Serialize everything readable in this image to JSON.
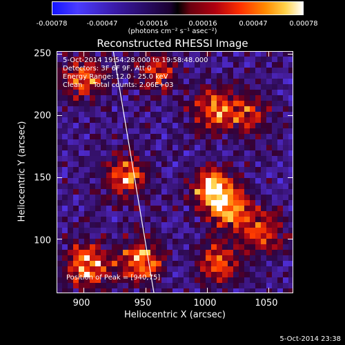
{
  "chart_data": {
    "type": "heatmap",
    "title": "Reconstructed RHESSI Image",
    "xlabel": "Heliocentric X (arcsec)",
    "ylabel": "Heliocentric Y (arcsec)",
    "xlim": [
      878,
      1070
    ],
    "ylim": [
      56,
      252
    ],
    "x_ticks": [
      "900",
      "950",
      "1000",
      "1050"
    ],
    "x_tick_values": [
      900,
      950,
      1000,
      1050
    ],
    "y_ticks": [
      "250",
      "200",
      "150",
      "100"
    ],
    "y_tick_values": [
      250,
      200,
      150,
      100
    ],
    "colorbar": {
      "min": -0.00078,
      "max": 0.00078,
      "ticks": [
        "-0.00078",
        "-0.00047",
        "-0.00016",
        "0.00016",
        "0.00047",
        "0.00078"
      ],
      "unit": "(photons cm⁻² s⁻¹ asec⁻²)"
    },
    "annotations": [
      "5-Oct-2014 19:54:28.000 to 19:58:48.000",
      "Detectors: 3F 6F 9F, Att 0",
      "Energy Range: 12.0 - 25.0 keV",
      "Clean     Total counts: 2.06E+03",
      "Position of Peak = [940,75]"
    ],
    "limb_line": {
      "x": [
        924,
        957
      ],
      "y": [
        252,
        56
      ]
    },
    "hot_spots": [
      {
        "x": 903,
        "y": 78,
        "strength": 0.9
      },
      {
        "x": 945,
        "y": 82,
        "strength": 0.85
      },
      {
        "x": 935,
        "y": 150,
        "strength": 0.75
      },
      {
        "x": 1005,
        "y": 140,
        "strength": 0.9
      },
      {
        "x": 1020,
        "y": 125,
        "strength": 0.7
      },
      {
        "x": 1045,
        "y": 105,
        "strength": 0.65
      },
      {
        "x": 900,
        "y": 230,
        "strength": 0.7
      },
      {
        "x": 1005,
        "y": 205,
        "strength": 0.7
      },
      {
        "x": 1035,
        "y": 200,
        "strength": 0.6
      },
      {
        "x": 960,
        "y": 235,
        "strength": 0.55
      },
      {
        "x": 1010,
        "y": 80,
        "strength": 0.7
      }
    ]
  },
  "timestamp": "5-Oct-2014 23:38"
}
